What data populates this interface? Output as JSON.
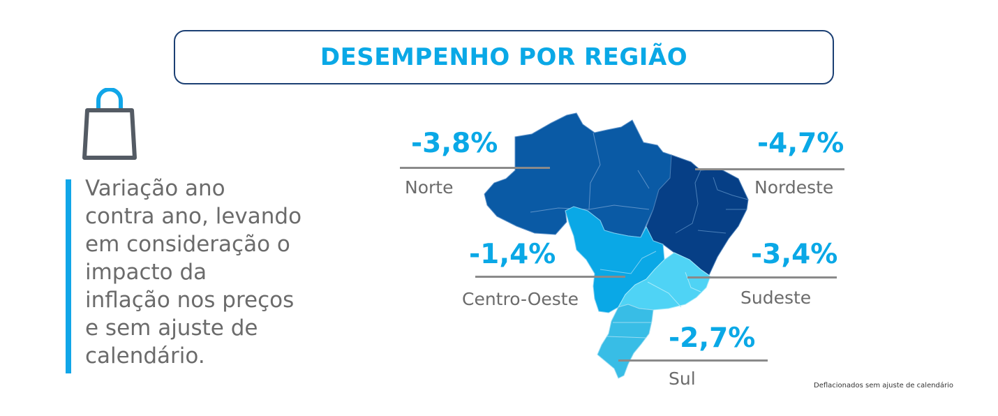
{
  "header": {
    "title": "DESEMPENHO POR REGIÃO"
  },
  "description": {
    "lines": [
      "Variação ano",
      "contra ano, levando",
      "em consideração o",
      "impacto da",
      "inflação nos preços",
      "e sem ajuste de",
      "calendário."
    ]
  },
  "regions": {
    "norte": {
      "name": "Norte",
      "value": "-3,8%"
    },
    "nordeste": {
      "name": "Nordeste",
      "value": "-4,7%"
    },
    "centro_oeste": {
      "name": "Centro-Oeste",
      "value": "-1,4%"
    },
    "sudeste": {
      "name": "Sudeste",
      "value": "-3,4%"
    },
    "sul": {
      "name": "Sul",
      "value": "-2,7%"
    }
  },
  "footnote": "Deflacionados sem ajuste de calendário",
  "colors": {
    "accent": "#0aa8e6",
    "title_border": "#1b3f73",
    "norte": "#0a5aa5",
    "nordeste": "#063f86",
    "centro_oeste": "#0aa8e6",
    "sudeste": "#4fd3f5",
    "sul": "#38bde6"
  },
  "icons": {
    "bag": "shopping-bag-icon"
  }
}
